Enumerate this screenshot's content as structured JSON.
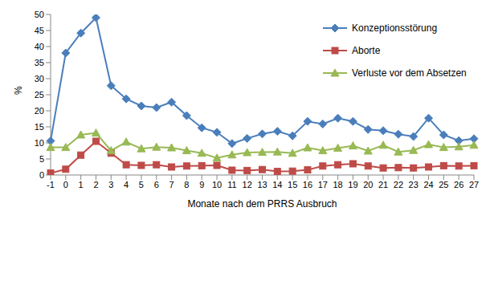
{
  "chart_data": {
    "type": "line",
    "x_label": "Monate nach dem PRRS Ausbruch",
    "y_label": "%",
    "categories": [
      "-1",
      "0",
      "1",
      "2",
      "3",
      "4",
      "5",
      "6",
      "7",
      "8",
      "9",
      "10",
      "11",
      "12",
      "13",
      "14",
      "15",
      "16",
      "17",
      "18",
      "19",
      "20",
      "21",
      "22",
      "23",
      "24",
      "25",
      "26",
      "27"
    ],
    "ylim": [
      0,
      50
    ],
    "yticks": [
      0,
      5,
      10,
      15,
      20,
      25,
      30,
      35,
      40,
      45,
      50
    ],
    "grid": false,
    "legend": "upper right",
    "series": [
      {
        "name": "Konzeptionsstörung",
        "color": "#4a7ebb",
        "marker": "diamond",
        "values": [
          10.6,
          38,
          44.2,
          49,
          27.8,
          23.7,
          21.5,
          21,
          22.7,
          18.5,
          14.7,
          13.3,
          9.8,
          11.4,
          12.8,
          13.6,
          12.2,
          16.7,
          15.9,
          17.7,
          16.7,
          14.2,
          13.8,
          12.7,
          12,
          17.7,
          12.5,
          10.7,
          11.3
        ]
      },
      {
        "name": "Aborte",
        "color": "#be4b48",
        "marker": "square",
        "values": [
          0.6,
          1.8,
          6.2,
          10.5,
          6.8,
          3.2,
          3,
          3.2,
          2.5,
          2.8,
          2.9,
          3,
          1.5,
          1.4,
          1.7,
          1.1,
          1.2,
          1.6,
          2.8,
          3.2,
          3.5,
          2.8,
          2.2,
          2.3,
          2.2,
          2.5,
          2.9,
          2.8,
          2.9
        ]
      },
      {
        "name": "Verluste vor dem Absetzen",
        "color": "#98b954",
        "marker": "triangle",
        "values": [
          8.6,
          8.6,
          12.5,
          13.1,
          7.6,
          10.3,
          8.2,
          8.7,
          8.5,
          7.6,
          6.8,
          5.3,
          6.3,
          7,
          7.1,
          7.2,
          6.8,
          8.5,
          7.6,
          8.4,
          9.1,
          7.5,
          9.3,
          7.2,
          7.7,
          9.5,
          8.6,
          8.8,
          9.3
        ]
      }
    ]
  }
}
